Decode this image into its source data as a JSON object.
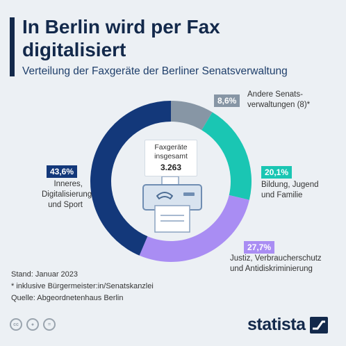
{
  "header": {
    "title": "In Berlin wird per Fax digitalisiert",
    "subtitle": "Verteilung der Faxgeräte der Berliner Senatsverwaltung"
  },
  "center": {
    "label_line1": "Faxgeräte",
    "label_line2": "insgesamt",
    "total": "3.263"
  },
  "chart_data": {
    "type": "pie",
    "title": "In Berlin wird per Fax digitalisiert",
    "subtitle": "Verteilung der Faxgeräte der Berliner Senatsverwaltung",
    "total": 3263,
    "unit": "%",
    "slices": [
      {
        "pct_label": "8,6%",
        "value": 8.6,
        "label_lines": [
          "Andere Senats-",
          "verwaltungen (8)*"
        ],
        "color": "#8796a5"
      },
      {
        "pct_label": "20,1%",
        "value": 20.1,
        "label_lines": [
          "Bildung, Jugend",
          "und Familie"
        ],
        "color": "#1ac6b3"
      },
      {
        "pct_label": "27,7%",
        "value": 27.7,
        "label_lines": [
          "Justiz, Verbraucherschutz",
          "und Antidiskriminierung"
        ],
        "color": "#a98df3"
      },
      {
        "pct_label": "43,6%",
        "value": 43.6,
        "label_lines": [
          "Inneres,",
          "Digitalisierung",
          "und Sport"
        ],
        "color": "#13387a"
      }
    ]
  },
  "footer": {
    "stand": "Stand: Januar 2023",
    "note": "* inklusive Bürgermeister:in/Senatskanzlei",
    "source": "Quelle: Abgeordnetenhaus Berlin"
  },
  "license_icons": [
    "creative-commons-icon",
    "attribution-icon",
    "no-derivatives-icon"
  ],
  "brand": {
    "name": "statista"
  }
}
